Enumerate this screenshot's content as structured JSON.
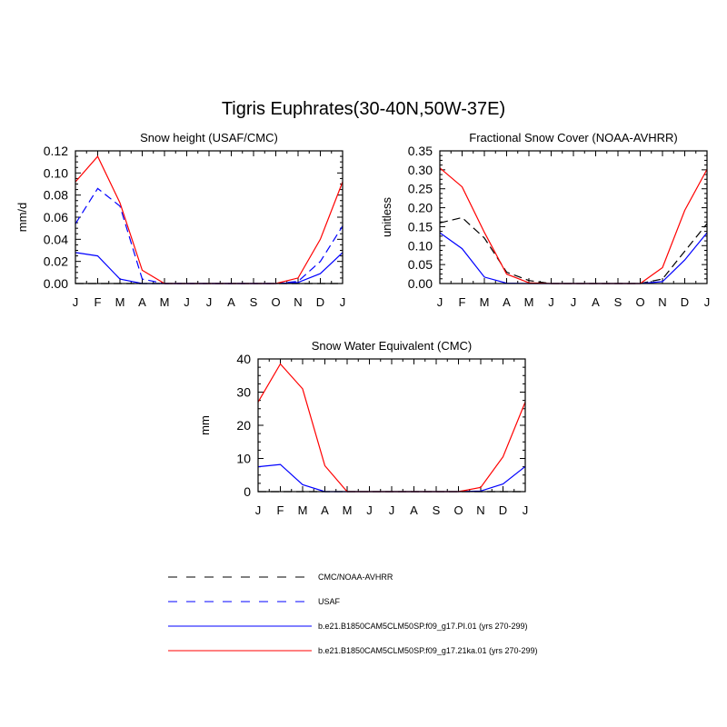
{
  "figure_title": "Tigris Euphrates(30-40N,50W-37E)",
  "chart_data": [
    {
      "type": "line",
      "title": "Snow height (USAF/CMC)",
      "ylabel": "mm/d",
      "xlabel": "",
      "categories": [
        "J",
        "F",
        "M",
        "A",
        "M",
        "J",
        "J",
        "A",
        "S",
        "O",
        "N",
        "D",
        "J"
      ],
      "ylim": [
        0,
        0.12
      ],
      "yticks": [
        "0.00",
        "0.02",
        "0.04",
        "0.06",
        "0.08",
        "0.10",
        "0.12"
      ],
      "series": [
        {
          "name": "CMC/NOAA-AVHRR",
          "color": "#000000",
          "dash": true,
          "values": [
            0,
            0,
            0,
            0,
            0,
            0,
            0,
            0,
            0,
            0,
            0,
            0,
            0
          ]
        },
        {
          "name": "USAF",
          "color": "#0000ff",
          "dash": true,
          "values": [
            0.054,
            0.086,
            0.07,
            0.004,
            0,
            0,
            0,
            0,
            0,
            0,
            0.002,
            0.02,
            0.052
          ]
        },
        {
          "name": "b.e21.B1850CAM5CLM50SP.f09_g17.PI.01 (yrs 270-299)",
          "color": "#0000ff",
          "dash": false,
          "values": [
            0.028,
            0.025,
            0.004,
            0,
            0,
            0,
            0,
            0,
            0,
            0,
            0.001,
            0.009,
            0.028
          ]
        },
        {
          "name": "b.e21.B1850CAM5CLM50SP.f09_g17.21ka.01 (yrs 270-299)",
          "color": "#ff0000",
          "dash": false,
          "values": [
            0.092,
            0.115,
            0.073,
            0.012,
            0,
            0,
            0,
            0,
            0,
            0,
            0.005,
            0.04,
            0.092
          ]
        }
      ]
    },
    {
      "type": "line",
      "title": "Fractional Snow Cover (NOAA-AVHRR)",
      "ylabel": "unitless",
      "xlabel": "",
      "categories": [
        "J",
        "F",
        "M",
        "A",
        "M",
        "J",
        "J",
        "A",
        "S",
        "O",
        "N",
        "D",
        "J"
      ],
      "ylim": [
        0,
        0.35
      ],
      "yticks": [
        "0.00",
        "0.05",
        "0.10",
        "0.15",
        "0.20",
        "0.25",
        "0.30",
        "0.35"
      ],
      "series": [
        {
          "name": "CMC/NOAA-AVHRR",
          "color": "#000000",
          "dash": true,
          "values": [
            0.16,
            0.174,
            0.12,
            0.03,
            0.008,
            0,
            0,
            0,
            0,
            0,
            0.012,
            0.085,
            0.158
          ]
        },
        {
          "name": "b.e21.B1850CAM5CLM50SP.f09_g17.PI.01 (yrs 270-299)",
          "color": "#0000ff",
          "dash": false,
          "values": [
            0.134,
            0.092,
            0.017,
            0.001,
            0,
            0,
            0,
            0,
            0,
            0,
            0.005,
            0.062,
            0.134
          ]
        },
        {
          "name": "b.e21.B1850CAM5CLM50SP.f09_g17.21ka.01 (yrs 270-299)",
          "color": "#ff0000",
          "dash": false,
          "values": [
            0.305,
            0.255,
            0.135,
            0.025,
            0.002,
            0,
            0,
            0,
            0,
            0,
            0.042,
            0.193,
            0.301
          ]
        }
      ]
    },
    {
      "type": "line",
      "title": "Snow Water Equivalent (CMC)",
      "ylabel": "mm",
      "xlabel": "",
      "categories": [
        "J",
        "F",
        "M",
        "A",
        "M",
        "J",
        "J",
        "A",
        "S",
        "O",
        "N",
        "D",
        "J"
      ],
      "ylim": [
        0,
        40
      ],
      "yticks": [
        "0",
        "10",
        "20",
        "30",
        "40"
      ],
      "series": [
        {
          "name": "CMC/NOAA-AVHRR",
          "color": "#000000",
          "dash": true,
          "values": [
            0,
            0,
            0,
            0,
            0,
            0,
            0,
            0,
            0,
            0,
            0,
            0,
            0
          ]
        },
        {
          "name": "b.e21.B1850CAM5CLM50SP.f09_g17.PI.01 (yrs 270-299)",
          "color": "#0000ff",
          "dash": false,
          "values": [
            7.5,
            8.2,
            2.1,
            0,
            0,
            0,
            0,
            0,
            0,
            0,
            0.2,
            2.3,
            7.6
          ]
        },
        {
          "name": "b.e21.B1850CAM5CLM50SP.f09_g17.21ka.01 (yrs 270-299)",
          "color": "#ff0000",
          "dash": false,
          "values": [
            27,
            38.5,
            31,
            7.8,
            0,
            0,
            0,
            0,
            0,
            0,
            1.3,
            10.5,
            27
          ]
        }
      ]
    }
  ],
  "legend": {
    "entries": [
      {
        "label": "CMC/NOAA-AVHRR",
        "color": "#000000",
        "dash": true
      },
      {
        "label": "USAF",
        "color": "#0000ff",
        "dash": true
      },
      {
        "label": "b.e21.B1850CAM5CLM50SP.f09_g17.PI.01 (yrs 270-299)",
        "color": "#0000ff",
        "dash": false
      },
      {
        "label": "b.e21.B1850CAM5CLM50SP.f09_g17.21ka.01 (yrs 270-299)",
        "color": "#ff0000",
        "dash": false
      }
    ]
  }
}
